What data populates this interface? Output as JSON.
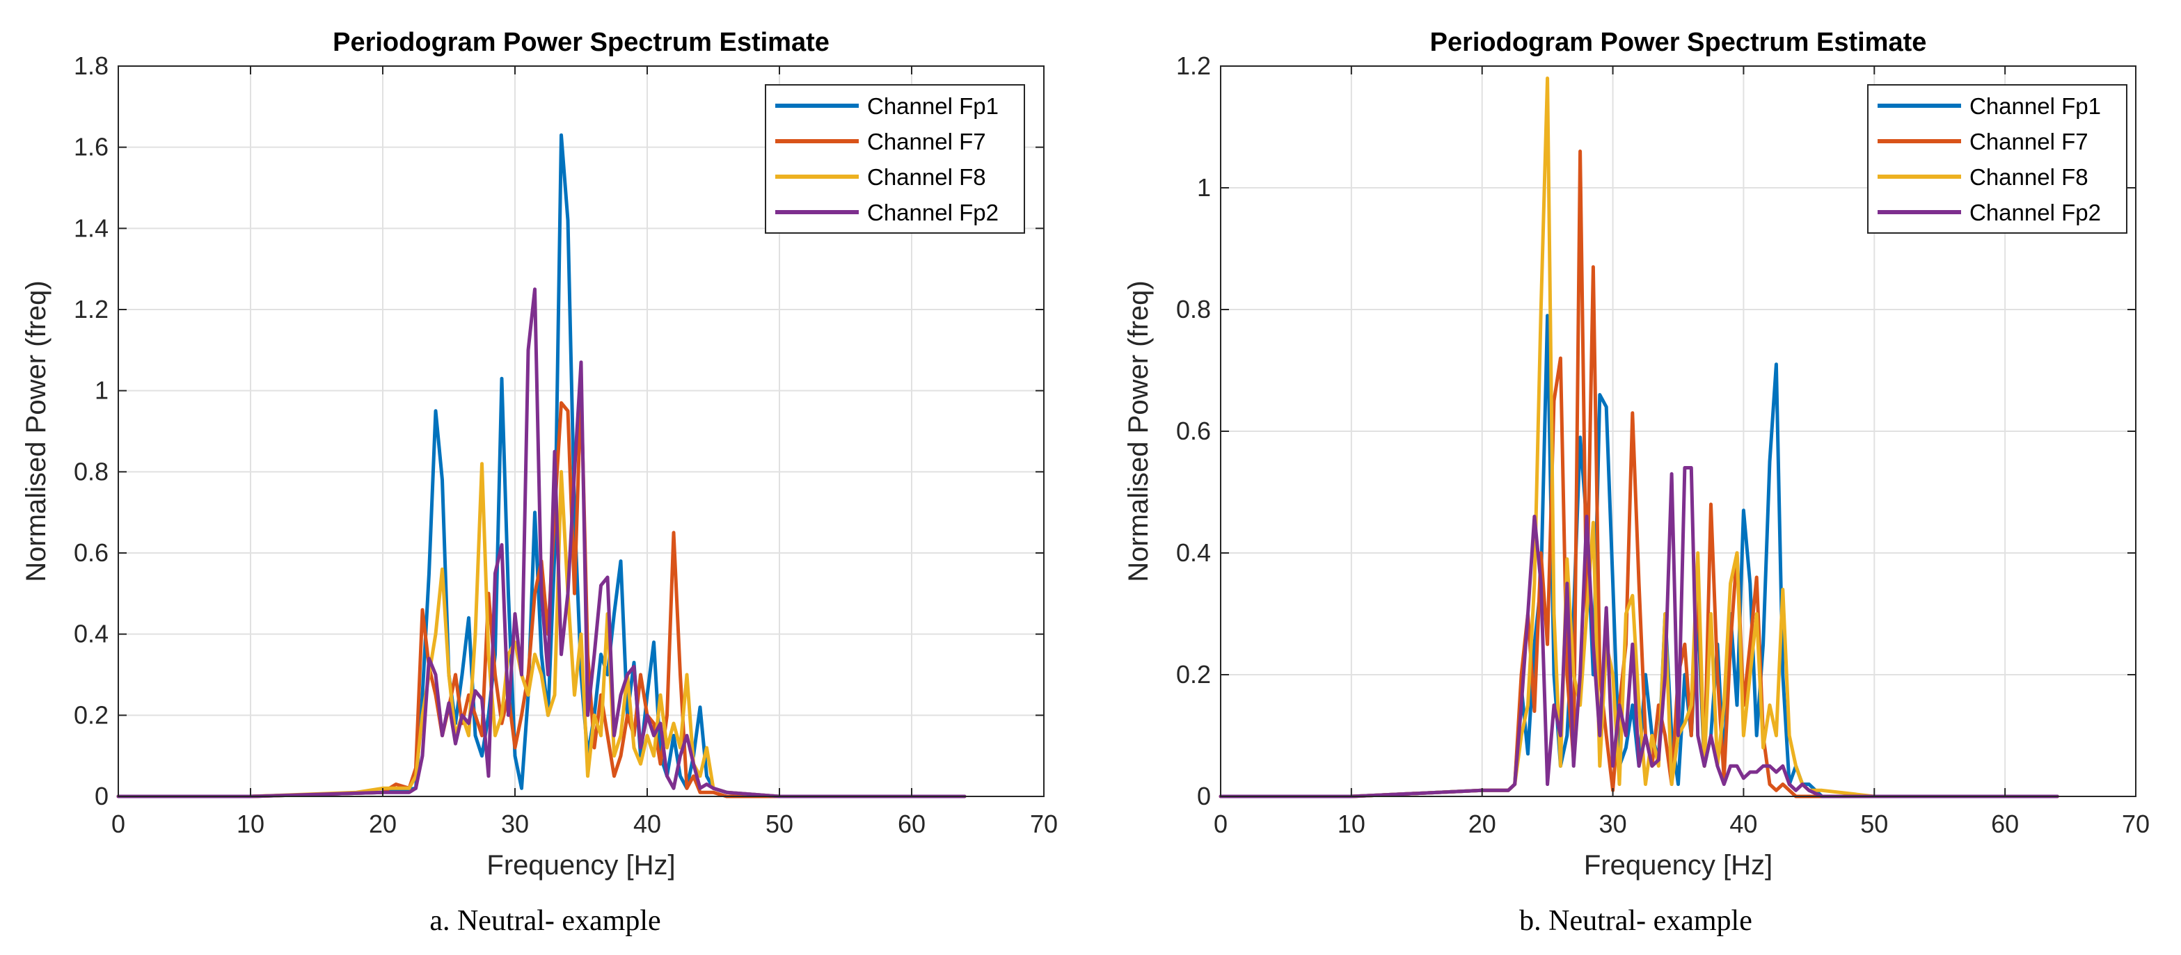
{
  "colors": {
    "Channel Fp1": "#0072BD",
    "Channel F7": "#D95319",
    "Channel F8": "#EDB120",
    "Channel Fp2": "#7E2F8E",
    "grid": "#e1e1e1",
    "axis": "#262626"
  },
  "chart_data": [
    {
      "type": "line",
      "title": "Periodogram Power Spectrum Estimate",
      "xlabel": "Frequency [Hz]",
      "ylabel": "Normalised Power (freq)",
      "xlim": [
        0,
        70
      ],
      "ylim": [
        0,
        1.8
      ],
      "xticks": [
        0,
        10,
        20,
        30,
        40,
        50,
        60,
        70
      ],
      "yticks": [
        0,
        0.2,
        0.4,
        0.6,
        0.8,
        1,
        1.2,
        1.4,
        1.6,
        1.8
      ],
      "grid": true,
      "legend_position": "top-right",
      "caption": "a. Neutral- example",
      "series": [
        {
          "name": "Channel Fp1",
          "x": [
            0,
            10,
            20,
            22.5,
            23,
            23.5,
            24,
            24.5,
            25,
            25.5,
            26,
            26.5,
            27,
            27.5,
            28,
            28.5,
            29,
            29.5,
            30,
            30.5,
            31,
            31.5,
            32,
            32.5,
            33,
            33.5,
            34,
            34.5,
            35,
            35.5,
            36,
            36.5,
            37,
            37.5,
            38,
            38.5,
            39,
            39.5,
            40,
            40.5,
            41,
            41.5,
            42,
            42.5,
            43,
            43.5,
            44,
            44.5,
            45,
            46,
            50,
            60,
            64
          ],
          "y": [
            0,
            0,
            0.01,
            0.02,
            0.25,
            0.55,
            0.95,
            0.78,
            0.3,
            0.18,
            0.3,
            0.44,
            0.15,
            0.1,
            0.2,
            0.35,
            1.03,
            0.5,
            0.1,
            0.02,
            0.25,
            0.7,
            0.35,
            0.2,
            0.6,
            1.63,
            1.42,
            0.7,
            0.3,
            0.1,
            0.2,
            0.35,
            0.3,
            0.45,
            0.58,
            0.2,
            0.33,
            0.1,
            0.25,
            0.38,
            0.1,
            0.05,
            0.15,
            0.05,
            0.02,
            0.1,
            0.22,
            0.05,
            0.02,
            0.01,
            0,
            0,
            0
          ]
        },
        {
          "name": "Channel F7",
          "x": [
            0,
            10,
            20,
            21,
            22,
            22.5,
            23,
            23.5,
            24,
            24.5,
            25,
            25.5,
            26,
            26.5,
            27,
            27.5,
            28,
            28.5,
            29,
            29.5,
            30,
            30.5,
            31,
            31.5,
            32,
            32.5,
            33,
            33.5,
            34,
            34.5,
            35,
            35.5,
            36,
            36.5,
            37,
            37.5,
            38,
            38.5,
            39,
            39.5,
            40,
            40.5,
            41,
            41.5,
            42,
            42.5,
            43,
            43.5,
            44,
            45,
            46,
            50,
            60,
            64
          ],
          "y": [
            0,
            0,
            0.01,
            0.03,
            0.02,
            0.07,
            0.46,
            0.32,
            0.25,
            0.15,
            0.22,
            0.3,
            0.18,
            0.25,
            0.2,
            0.15,
            0.5,
            0.3,
            0.18,
            0.25,
            0.12,
            0.2,
            0.3,
            0.5,
            0.58,
            0.4,
            0.7,
            0.97,
            0.95,
            0.5,
            1.01,
            0.35,
            0.12,
            0.25,
            0.15,
            0.05,
            0.1,
            0.2,
            0.15,
            0.3,
            0.2,
            0.18,
            0.08,
            0.2,
            0.65,
            0.3,
            0.02,
            0.05,
            0.01,
            0.01,
            0,
            0,
            0,
            0
          ]
        },
        {
          "name": "Channel F8",
          "x": [
            0,
            10,
            18,
            20,
            22,
            22.5,
            23,
            23.5,
            24,
            24.5,
            25,
            25.5,
            26,
            26.5,
            27,
            27.5,
            28,
            28.5,
            29,
            29.5,
            30,
            30.5,
            31,
            31.5,
            32,
            32.5,
            33,
            33.5,
            34,
            34.5,
            35,
            35.5,
            36,
            36.5,
            37,
            37.5,
            38,
            38.5,
            39,
            39.5,
            40,
            40.5,
            41,
            41.5,
            42,
            42.5,
            43,
            43.5,
            44,
            44.5,
            45,
            46,
            50,
            60,
            64
          ],
          "y": [
            0,
            0,
            0.01,
            0.02,
            0.02,
            0.05,
            0.2,
            0.3,
            0.4,
            0.56,
            0.3,
            0.15,
            0.2,
            0.15,
            0.4,
            0.82,
            0.35,
            0.15,
            0.2,
            0.35,
            0.38,
            0.3,
            0.25,
            0.35,
            0.3,
            0.2,
            0.25,
            0.8,
            0.5,
            0.25,
            0.4,
            0.05,
            0.2,
            0.15,
            0.45,
            0.1,
            0.15,
            0.3,
            0.12,
            0.08,
            0.15,
            0.1,
            0.25,
            0.12,
            0.18,
            0.12,
            0.3,
            0.08,
            0.05,
            0.12,
            0.02,
            0.01,
            0,
            0,
            0
          ]
        },
        {
          "name": "Channel Fp2",
          "x": [
            0,
            10,
            20,
            22,
            22.5,
            23,
            23.5,
            24,
            24.5,
            25,
            25.5,
            26,
            26.5,
            27,
            27.5,
            28,
            28.5,
            29,
            29.5,
            30,
            30.5,
            31,
            31.5,
            32,
            32.5,
            33,
            33.5,
            34,
            34.5,
            35,
            35.5,
            36,
            36.5,
            37,
            37.5,
            38,
            38.5,
            39,
            39.5,
            40,
            40.5,
            41,
            41.5,
            42,
            42.5,
            43,
            43.5,
            44,
            44.5,
            45,
            46,
            50,
            60,
            64
          ],
          "y": [
            0,
            0,
            0.01,
            0.01,
            0.02,
            0.1,
            0.34,
            0.3,
            0.15,
            0.23,
            0.13,
            0.2,
            0.18,
            0.26,
            0.24,
            0.05,
            0.55,
            0.62,
            0.2,
            0.45,
            0.3,
            1.1,
            1.25,
            0.5,
            0.3,
            0.85,
            0.35,
            0.5,
            0.8,
            1.07,
            0.2,
            0.35,
            0.52,
            0.54,
            0.15,
            0.25,
            0.3,
            0.32,
            0.12,
            0.2,
            0.15,
            0.18,
            0.05,
            0.02,
            0.1,
            0.15,
            0.08,
            0.02,
            0.03,
            0.02,
            0.01,
            0,
            0,
            0
          ]
        }
      ]
    },
    {
      "type": "line",
      "title": "Periodogram Power Spectrum Estimate",
      "xlabel": "Frequency [Hz]",
      "ylabel": "Normalised Power (freq)",
      "xlim": [
        0,
        70
      ],
      "ylim": [
        0,
        1.2
      ],
      "xticks": [
        0,
        10,
        20,
        30,
        40,
        50,
        60,
        70
      ],
      "yticks": [
        0,
        0.2,
        0.4,
        0.6,
        0.8,
        1,
        1.2
      ],
      "grid": true,
      "legend_position": "top-right",
      "caption": "b. Neutral- example",
      "series": [
        {
          "name": "Channel Fp1",
          "x": [
            0,
            10,
            20,
            22,
            22.5,
            23,
            23.5,
            24,
            24.5,
            25,
            25.5,
            26,
            26.5,
            27,
            27.5,
            28,
            28.5,
            29,
            29.5,
            30,
            30.5,
            31,
            31.5,
            32,
            32.5,
            33,
            33.5,
            34,
            34.5,
            35,
            35.5,
            36,
            36.5,
            37,
            37.5,
            38,
            38.5,
            39,
            39.5,
            40,
            40.5,
            41,
            41.5,
            42,
            42.5,
            43,
            43.5,
            44,
            44.5,
            45,
            46,
            50,
            60,
            64
          ],
          "y": [
            0,
            0,
            0.01,
            0.01,
            0.02,
            0.18,
            0.07,
            0.25,
            0.35,
            0.79,
            0.2,
            0.05,
            0.1,
            0.3,
            0.59,
            0.45,
            0.2,
            0.66,
            0.64,
            0.35,
            0.05,
            0.08,
            0.15,
            0.05,
            0.2,
            0.1,
            0.06,
            0.3,
            0.1,
            0.02,
            0.2,
            0.1,
            0.3,
            0.05,
            0.1,
            0.25,
            0.05,
            0.3,
            0.15,
            0.47,
            0.35,
            0.1,
            0.25,
            0.55,
            0.71,
            0.2,
            0.02,
            0.05,
            0.02,
            0.02,
            0,
            0,
            0,
            0
          ]
        },
        {
          "name": "Channel F7",
          "x": [
            0,
            10,
            20,
            22,
            22.5,
            23,
            23.5,
            24,
            24.5,
            25,
            25.5,
            26,
            26.5,
            27,
            27.5,
            28,
            28.5,
            29,
            29.5,
            30,
            30.5,
            31,
            31.5,
            32,
            32.5,
            33,
            33.5,
            34,
            34.5,
            35,
            35.5,
            36,
            36.5,
            37,
            37.5,
            38,
            38.5,
            39,
            39.5,
            40,
            40.5,
            41,
            41.5,
            42,
            42.5,
            43,
            43.5,
            44,
            45,
            46,
            50,
            60,
            64
          ],
          "y": [
            0,
            0,
            0.01,
            0.01,
            0.02,
            0.2,
            0.3,
            0.14,
            0.4,
            0.25,
            0.65,
            0.72,
            0.2,
            0.06,
            1.06,
            0.3,
            0.87,
            0.2,
            0.1,
            0.01,
            0.15,
            0.25,
            0.63,
            0.35,
            0.1,
            0.05,
            0.15,
            0.1,
            0.02,
            0.2,
            0.25,
            0.1,
            0.35,
            0.05,
            0.48,
            0.2,
            0.03,
            0.25,
            0.4,
            0.15,
            0.25,
            0.36,
            0.1,
            0.02,
            0.01,
            0.02,
            0.01,
            0,
            0,
            0,
            0,
            0,
            0
          ]
        },
        {
          "name": "Channel F8",
          "x": [
            0,
            10,
            20,
            22,
            22.5,
            23,
            23.5,
            24,
            24.5,
            25,
            25.5,
            26,
            26.5,
            27,
            27.5,
            28,
            28.5,
            29,
            29.5,
            30,
            30.5,
            31,
            31.5,
            32,
            32.5,
            33,
            33.5,
            34,
            34.5,
            35,
            35.5,
            36,
            36.5,
            37,
            37.5,
            38,
            38.5,
            39,
            39.5,
            40,
            40.5,
            41,
            41.5,
            42,
            42.5,
            43,
            43.5,
            44,
            44.5,
            45,
            46,
            50,
            55,
            60,
            64
          ],
          "y": [
            0,
            0,
            0.01,
            0.01,
            0.02,
            0.1,
            0.15,
            0.35,
            0.8,
            1.18,
            0.3,
            0.05,
            0.39,
            0.2,
            0.15,
            0.3,
            0.45,
            0.05,
            0.25,
            0.2,
            0.02,
            0.3,
            0.33,
            0.15,
            0.02,
            0.1,
            0.05,
            0.3,
            0.02,
            0.1,
            0.12,
            0.15,
            0.4,
            0.05,
            0.3,
            0.05,
            0.15,
            0.35,
            0.4,
            0.1,
            0.2,
            0.3,
            0.08,
            0.15,
            0.1,
            0.34,
            0.1,
            0.05,
            0.02,
            0.01,
            0.01,
            0,
            0,
            0,
            0
          ]
        },
        {
          "name": "Channel Fp2",
          "x": [
            0,
            10,
            20,
            22,
            22.5,
            23,
            23.5,
            24,
            24.5,
            25,
            25.5,
            26,
            26.5,
            27,
            27.5,
            28,
            28.5,
            29,
            29.5,
            30,
            30.5,
            31,
            31.5,
            32,
            32.5,
            33,
            33.5,
            34,
            34.5,
            35,
            35.5,
            36,
            36.5,
            37,
            37.5,
            38,
            38.5,
            39,
            39.5,
            40,
            40.5,
            41,
            41.5,
            42,
            42.5,
            43,
            43.5,
            44,
            44.5,
            45,
            46,
            50,
            60,
            64
          ],
          "y": [
            0,
            0,
            0.01,
            0.01,
            0.02,
            0.15,
            0.3,
            0.46,
            0.35,
            0.02,
            0.15,
            0.1,
            0.35,
            0.05,
            0.2,
            0.46,
            0.25,
            0.1,
            0.31,
            0.05,
            0.15,
            0.1,
            0.25,
            0.05,
            0.1,
            0.05,
            0.06,
            0.2,
            0.53,
            0.1,
            0.54,
            0.54,
            0.1,
            0.05,
            0.1,
            0.05,
            0.02,
            0.05,
            0.05,
            0.03,
            0.04,
            0.04,
            0.05,
            0.05,
            0.04,
            0.05,
            0.02,
            0.01,
            0.02,
            0.01,
            0,
            0,
            0,
            0
          ]
        }
      ]
    }
  ]
}
